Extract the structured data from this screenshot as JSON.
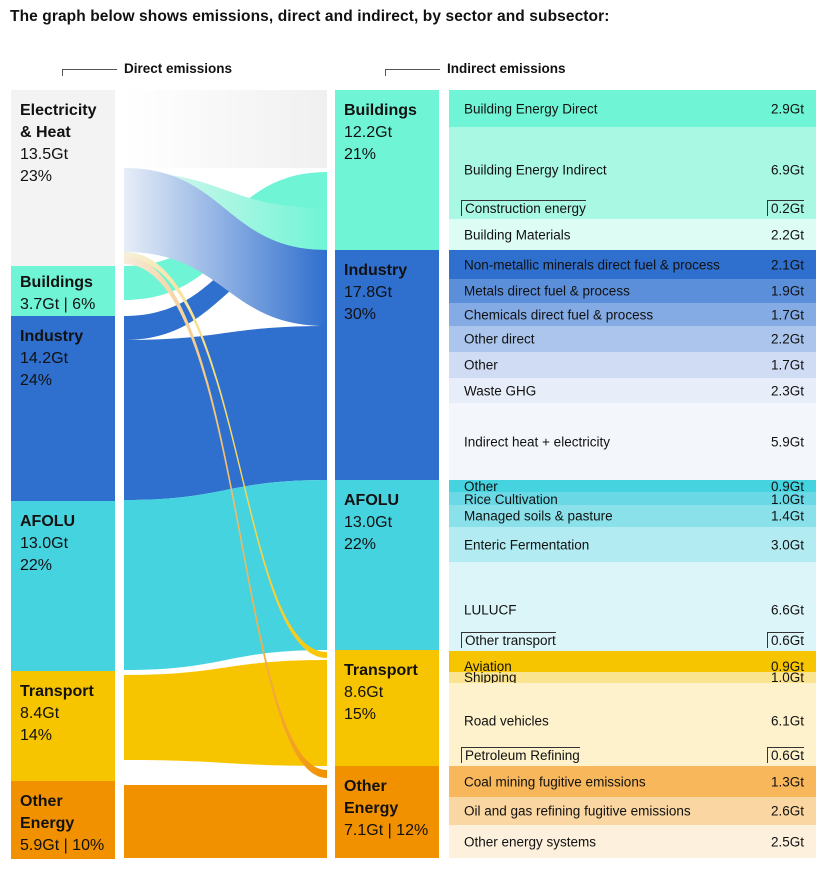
{
  "title": "The graph below shows emissions, direct and indirect, by sector and subsector:",
  "headers": {
    "direct": "Direct emissions",
    "indirect": "Indirect emissions"
  },
  "chart_data": {
    "type": "sankey",
    "unit": "Gt",
    "direct_sectors": [
      {
        "name": "Electricity & Heat",
        "value": "13.5Gt",
        "pct": "23%",
        "color": "#f3f3f3"
      },
      {
        "name": "Buildings",
        "value": "3.7Gt | 6%",
        "pct": "",
        "color": "#6ff5d5"
      },
      {
        "name": "Industry",
        "value": "14.2Gt",
        "pct": "24%",
        "color": "#2f6fcd"
      },
      {
        "name": "AFOLU",
        "value": "13.0Gt",
        "pct": "22%",
        "color": "#46d3e0"
      },
      {
        "name": "Transport",
        "value": "8.4Gt",
        "pct": "14%",
        "color": "#f7c400"
      },
      {
        "name": "Other Energy",
        "value": "5.9Gt | 10%",
        "pct": "",
        "color": "#f29100"
      }
    ],
    "indirect_sectors": [
      {
        "name": "Buildings",
        "value": "12.2Gt",
        "pct": "21%",
        "color": "#6ff5d5"
      },
      {
        "name": "Industry",
        "value": "17.8Gt",
        "pct": "30%",
        "color": "#2f6fcd"
      },
      {
        "name": "AFOLU",
        "value": "13.0Gt",
        "pct": "22%",
        "color": "#46d3e0"
      },
      {
        "name": "Transport",
        "value": "8.6Gt",
        "pct": "15%",
        "color": "#f7c400"
      },
      {
        "name": "Other Energy",
        "value": "7.1Gt | 12%",
        "pct": "",
        "color": "#f29100"
      }
    ],
    "subsectors": [
      {
        "label": "Building Energy Direct",
        "value": "2.9Gt",
        "color": "#6ff5d5"
      },
      {
        "label": "Building Energy Indirect",
        "value": "6.9Gt",
        "color": "#a8f8e3"
      },
      {
        "label": "Construction energy",
        "value": "0.2Gt",
        "color": "#a8f8e3"
      },
      {
        "label": "Building Materials",
        "value": "2.2Gt",
        "color": "#dcfcf4"
      },
      {
        "label": "Non-metallic minerals direct fuel & process",
        "value": "2.1Gt",
        "color": "#2f6fcd"
      },
      {
        "label": "Metals direct fuel & process",
        "value": "1.9Gt",
        "color": "#5c8fda"
      },
      {
        "label": "Chemicals direct fuel & process",
        "value": "1.7Gt",
        "color": "#85abe4"
      },
      {
        "label": "Other direct",
        "value": "2.2Gt",
        "color": "#abc5ec"
      },
      {
        "label": "Other",
        "value": "1.7Gt",
        "color": "#cfdcf3"
      },
      {
        "label": "Waste GHG",
        "value": "2.3Gt",
        "color": "#e7eef9"
      },
      {
        "label": "Indirect heat + electricity",
        "value": "5.9Gt",
        "color": "#f3f6fb"
      },
      {
        "label": "Other",
        "value": "0.9Gt",
        "color": "#46d3e0"
      },
      {
        "label": "Rice Cultivation",
        "value": "1.0Gt",
        "color": "#6ad9e5"
      },
      {
        "label": "Managed soils & pasture",
        "value": "1.4Gt",
        "color": "#8be1ea"
      },
      {
        "label": "Enteric Fermentation",
        "value": "3.0Gt",
        "color": "#b2ebf1"
      },
      {
        "label": "LULUCF",
        "value": "6.6Gt",
        "color": "#dcf5f8"
      },
      {
        "label": "Other transport",
        "value": "0.6Gt",
        "color": "#dcf5f8"
      },
      {
        "label": "Aviation",
        "value": "0.9Gt",
        "color": "#f7c400"
      },
      {
        "label": "Shipping",
        "value": "1.0Gt",
        "color": "#fbe48f"
      },
      {
        "label": "Road vehicles",
        "value": "6.1Gt",
        "color": "#fdf2cb"
      },
      {
        "label": "Petroleum Refining",
        "value": "0.6Gt",
        "color": "#fdf2cb"
      },
      {
        "label": "Coal mining fugitive emissions",
        "value": "1.3Gt",
        "color": "#f7b75a"
      },
      {
        "label": "Oil and gas refining fugitive emissions",
        "value": "2.6Gt",
        "color": "#fad7a2"
      },
      {
        "label": "Other energy systems",
        "value": "2.5Gt",
        "color": "#fdf0dc"
      }
    ]
  }
}
